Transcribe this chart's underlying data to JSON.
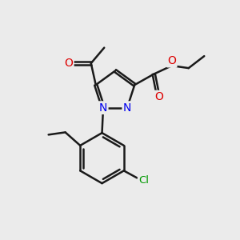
{
  "background_color": "#ebebeb",
  "bond_color": "#1a1a1a",
  "bond_width": 1.8,
  "dbo": 0.055,
  "atom_colors": {
    "N": "#0000ee",
    "O": "#dd0000",
    "Cl": "#009900"
  },
  "font_size": 10,
  "fig_width": 3.0,
  "fig_height": 3.0,
  "dpi": 100
}
